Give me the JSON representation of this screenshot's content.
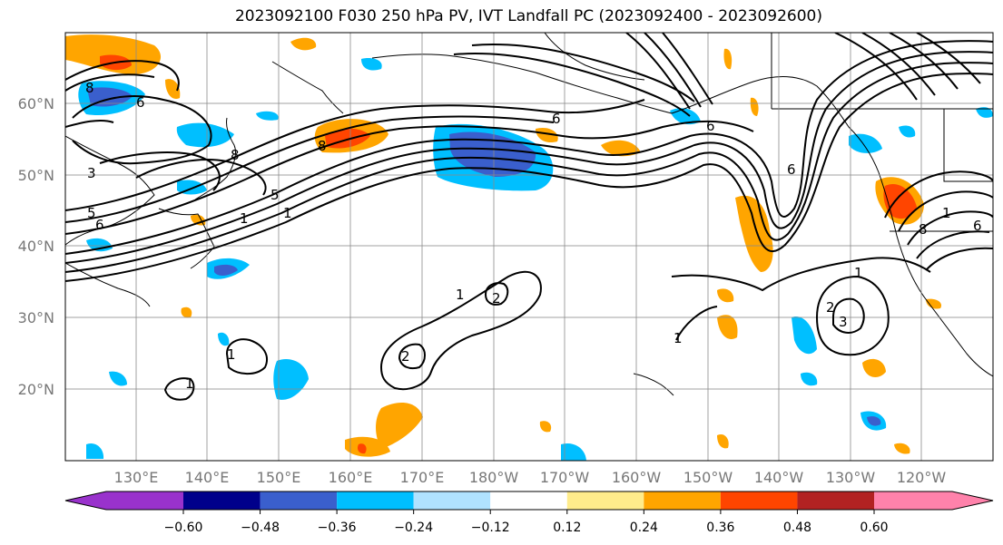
{
  "title": "2023092100 F030 250 hPa PV, IVT Landfall PC (2023092400 - 2023092600)",
  "lat_labels": [
    "60°N",
    "50°N",
    "40°N",
    "30°N",
    "20°N"
  ],
  "lon_labels": [
    "130°E",
    "140°E",
    "150°E",
    "160°E",
    "170°E",
    "180°W",
    "170°W",
    "160°W",
    "150°W",
    "140°W",
    "130°W",
    "120°W"
  ],
  "colorbar": {
    "ticks": [
      "−0.60",
      "−0.48",
      "−0.36",
      "−0.24",
      "−0.12",
      "0.12",
      "0.24",
      "0.36",
      "0.48",
      "0.60"
    ],
    "colors": [
      "#9932CC",
      "#00008B",
      "#3A5FCD",
      "#00BFFF",
      "#B0E2FF",
      "#FFFFFF",
      "#FFEC8B",
      "#FFA500",
      "#FF4500",
      "#B22222",
      "#FF82AB"
    ]
  },
  "contour_labels": [
    "8",
    "6",
    "3",
    "5",
    "6",
    "8",
    "1",
    "5",
    "8",
    "1",
    "6",
    "6",
    "6",
    "1",
    "2",
    "2",
    "1",
    "1",
    "1",
    "2",
    "3",
    "1",
    "1",
    "8",
    "6"
  ]
}
